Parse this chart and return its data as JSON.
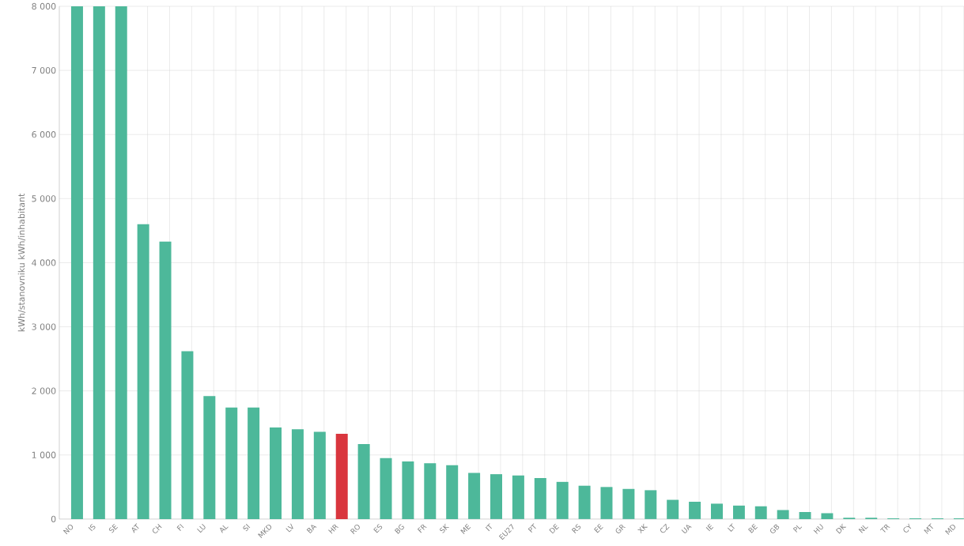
{
  "chart_data": {
    "type": "bar",
    "ylabel": "kWh/stanovniku   kWh/inhabitant",
    "categories": [
      "NO",
      "IS",
      "SE",
      "AT",
      "CH",
      "FI",
      "LU",
      "AL",
      "SI",
      "MKD",
      "LV",
      "BA",
      "HR",
      "RO",
      "ES",
      "BG",
      "FR",
      "SK",
      "ME",
      "IT",
      "EU27",
      "PT",
      "DE",
      "RS",
      "EE",
      "GR",
      "XK",
      "CZ",
      "UA",
      "IE",
      "LT",
      "BE",
      "GB",
      "PL",
      "HU",
      "DK",
      "NL",
      "TR",
      "CY",
      "MT",
      "MD"
    ],
    "values": [
      8000,
      8000,
      8000,
      4600,
      4330,
      2620,
      1920,
      1740,
      1740,
      1430,
      1400,
      1360,
      1330,
      1170,
      950,
      900,
      870,
      840,
      720,
      700,
      680,
      640,
      580,
      520,
      500,
      470,
      450,
      300,
      270,
      240,
      210,
      200,
      140,
      110,
      90,
      20,
      20,
      10,
      10,
      10,
      10
    ],
    "colors": [
      "#4db89a",
      "#4db89a",
      "#4db89a",
      "#4db89a",
      "#4db89a",
      "#4db89a",
      "#4db89a",
      "#4db89a",
      "#4db89a",
      "#4db89a",
      "#4db89a",
      "#4db89a",
      "#d9363e",
      "#4db89a",
      "#4db89a",
      "#4db89a",
      "#4db89a",
      "#4db89a",
      "#4db89a",
      "#4db89a",
      "#4db89a",
      "#4db89a",
      "#4db89a",
      "#4db89a",
      "#4db89a",
      "#4db89a",
      "#4db89a",
      "#4db89a",
      "#4db89a",
      "#4db89a",
      "#4db89a",
      "#4db89a",
      "#4db89a",
      "#4db89a",
      "#4db89a",
      "#4db89a",
      "#4db89a",
      "#4db89a",
      "#4db89a",
      "#4db89a",
      "#4db89a"
    ],
    "ylim": [
      0,
      8000
    ],
    "yticks": [
      0,
      {
        "value": 1000,
        "label": "1 000"
      },
      {
        "value": 2000,
        "label": "2 000"
      },
      {
        "value": 3000,
        "label": "3 000"
      },
      {
        "value": 4000,
        "label": "4 000"
      },
      {
        "value": 5000,
        "label": "5 000"
      },
      {
        "value": 6000,
        "label": "6 000"
      },
      {
        "value": 7000,
        "label": "7 000"
      },
      {
        "value": 8000,
        "label": "8 000"
      }
    ],
    "grid": true
  }
}
